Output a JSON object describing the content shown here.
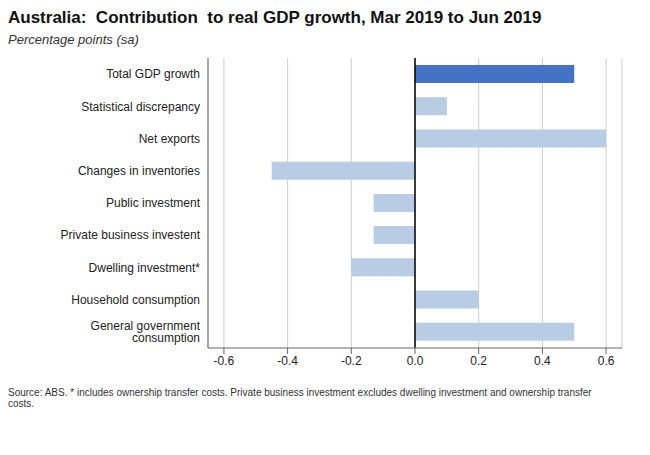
{
  "chart_data": {
    "type": "bar",
    "orientation": "horizontal",
    "title": "Australia:  Contribution  to real GDP growth, Mar 2019 to Jun 2019",
    "subtitle": "Percentage points (sa)",
    "source": "Source: ABS. * includes ownership transfer costs. Private business investment excludes dwelling investment and ownership transfer\ncosts.",
    "categories": [
      "General government consumption",
      "Household consumption",
      "Dwelling investment*",
      "Private business investent",
      "Public investment",
      "Changes in inventories",
      "Net exports",
      "Statistical discrepancy",
      "Total GDP growth"
    ],
    "values": [
      0.5,
      0.2,
      -0.2,
      -0.13,
      -0.13,
      -0.45,
      0.6,
      0.1,
      0.5
    ],
    "colors": [
      "#b8cce4",
      "#b8cce4",
      "#b8cce4",
      "#b8cce4",
      "#b8cce4",
      "#b8cce4",
      "#b8cce4",
      "#b8cce4",
      "#4472c4"
    ],
    "xlim": [
      -0.65,
      0.65
    ],
    "xticks": [
      -0.6,
      -0.4,
      -0.2,
      {
        "value": 0,
        "label": "0.0"
      },
      0.2,
      0.4,
      0.6
    ],
    "grid": true
  }
}
